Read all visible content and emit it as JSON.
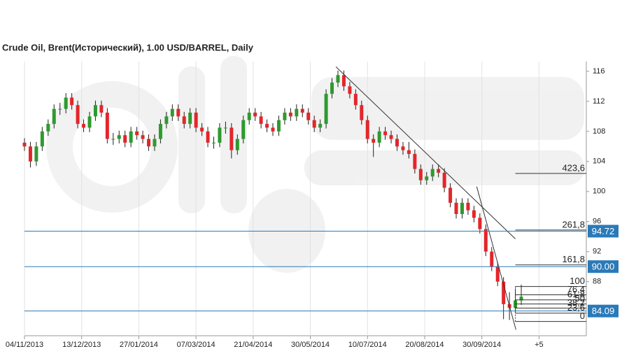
{
  "chart_data": {
    "type": "candlestick",
    "title": "Crude Oil, Brent(Исторический), 1.00 USD/BARREL, Daily",
    "up_color": "#2e9a2e",
    "down_color": "#e3262b",
    "xlim": [
      0,
      285
    ],
    "xticks": [
      {
        "value": 0,
        "label": "04/11/2013"
      },
      {
        "value": 29,
        "label": "13/12/2013"
      },
      {
        "value": 58,
        "label": "27/01/2014"
      },
      {
        "value": 87,
        "label": "07/03/2014"
      },
      {
        "value": 116,
        "label": "21/04/2014"
      },
      {
        "value": 145,
        "label": "30/05/2014"
      },
      {
        "value": 174,
        "label": "10/07/2014"
      },
      {
        "value": 203,
        "label": "20/08/2014"
      },
      {
        "value": 232,
        "label": "30/09/2014"
      },
      {
        "value": 261,
        "label": "+5"
      }
    ],
    "ylim": [
      80.8,
      117.3
    ],
    "yticks": [
      88,
      92,
      96,
      100,
      104,
      108,
      112,
      116
    ],
    "x": [
      0,
      3,
      6,
      9,
      12,
      15,
      18,
      21,
      24,
      27,
      30,
      33,
      36,
      39,
      42,
      45,
      48,
      51,
      54,
      57,
      60,
      63,
      66,
      69,
      72,
      75,
      78,
      81,
      84,
      87,
      90,
      93,
      96,
      99,
      102,
      105,
      108,
      111,
      114,
      117,
      120,
      123,
      126,
      129,
      132,
      135,
      138,
      141,
      144,
      147,
      150,
      153,
      156,
      159,
      162,
      165,
      168,
      171,
      174,
      177,
      180,
      183,
      186,
      189,
      192,
      195,
      198,
      201,
      204,
      207,
      210,
      213,
      216,
      219,
      222,
      225,
      228,
      231,
      234,
      237,
      240,
      243,
      246,
      249,
      252
    ],
    "open": [
      106.5,
      106,
      104,
      106,
      108,
      109,
      111,
      111,
      112.5,
      111.5,
      109,
      108.5,
      110,
      111.5,
      110.5,
      107,
      107,
      107.5,
      106.5,
      108,
      107.5,
      107,
      106,
      107,
      109,
      110,
      111,
      110,
      109,
      110.5,
      108.5,
      108,
      106.5,
      106.5,
      108.5,
      108.5,
      105.5,
      107,
      109.5,
      110.5,
      110,
      109,
      108.5,
      108,
      109.5,
      110.5,
      110,
      111,
      110.5,
      109.5,
      108.5,
      109,
      113,
      114.5,
      115.5,
      114,
      113,
      111.5,
      109.5,
      107,
      106.5,
      108,
      107.5,
      107,
      106,
      105.5,
      105,
      103,
      101.5,
      102,
      103,
      102.5,
      100.5,
      98.5,
      97,
      98.5,
      97.5,
      96.5,
      95,
      92,
      90,
      88,
      85,
      84.5,
      85.5
    ],
    "high": [
      107.1,
      106.6,
      106.6,
      108.6,
      109.6,
      111.6,
      111.8,
      113.1,
      113.1,
      112.1,
      109.6,
      110.6,
      112.1,
      112.1,
      111.1,
      107.8,
      108.1,
      108.1,
      108.6,
      108.6,
      108.1,
      107.6,
      107.6,
      109.6,
      110.6,
      111.6,
      111.6,
      110.6,
      111.1,
      111.1,
      109.1,
      108.6,
      107.3,
      109.1,
      109.3,
      109.1,
      107.6,
      110.1,
      111.1,
      111.1,
      110.6,
      109.6,
      109.1,
      110.1,
      111.1,
      111.1,
      111.6,
      111.6,
      111.1,
      110.1,
      109.6,
      113.6,
      115.1,
      116.1,
      116.1,
      114.6,
      113.6,
      112.1,
      110.1,
      107.6,
      108.6,
      108.6,
      108.1,
      107.6,
      106.6,
      106.6,
      105.6,
      103.6,
      102.6,
      103.6,
      103.6,
      103.1,
      101.1,
      99.1,
      99.1,
      99.1,
      98.1,
      97.1,
      95.6,
      92.6,
      90.6,
      88.6,
      86.6,
      87.1,
      87.6
    ],
    "low": [
      105.4,
      103.2,
      103.4,
      105.4,
      107.4,
      108.4,
      110.2,
      110.4,
      110.9,
      108.4,
      107.9,
      107.9,
      109.4,
      109.9,
      106.4,
      106.2,
      106.4,
      105.9,
      105.9,
      106.9,
      106.4,
      105.4,
      105.4,
      106.4,
      108.4,
      109.4,
      109.4,
      108.4,
      108.4,
      107.9,
      107.4,
      105.9,
      105.7,
      105.9,
      107.7,
      104.4,
      104.9,
      106.4,
      108.9,
      109.4,
      108.4,
      107.9,
      107.4,
      107.4,
      108.9,
      109.4,
      109.4,
      109.9,
      108.9,
      107.9,
      107.9,
      108.4,
      112.4,
      113.9,
      113.4,
      112.4,
      110.9,
      108.9,
      106.4,
      104.6,
      105.9,
      106.9,
      106.4,
      105.4,
      104.9,
      104.4,
      102.4,
      100.9,
      100.9,
      101.4,
      101.9,
      99.9,
      97.9,
      96.4,
      96.4,
      96.9,
      95.9,
      94.4,
      91.4,
      89.4,
      87.4,
      83.0,
      82.9,
      83.9,
      84.9
    ],
    "close": [
      106,
      104,
      106,
      108,
      109,
      111,
      111,
      112.5,
      111.5,
      109,
      108.5,
      110,
      111.5,
      110.5,
      107,
      107,
      107.5,
      106.5,
      108,
      107.5,
      107,
      106,
      107,
      109,
      110,
      111,
      110,
      109,
      110.5,
      108.5,
      108,
      106.5,
      106.5,
      108.5,
      108.5,
      105.5,
      107,
      109.5,
      110.5,
      110,
      109,
      108.5,
      108,
      109.5,
      110.5,
      110,
      111,
      110.5,
      109.5,
      108.5,
      109,
      113,
      114.5,
      115.5,
      114,
      113,
      111.5,
      109.5,
      107,
      106.5,
      108,
      107.5,
      107,
      106,
      105.5,
      105,
      103,
      101.5,
      102,
      103,
      102.5,
      100.5,
      98.5,
      97,
      98.5,
      97.5,
      96.5,
      95,
      92,
      90,
      88,
      85,
      84.5,
      85.5,
      86
    ],
    "price_lines": [
      94.72,
      {
        "value": 90,
        "label": "90.00"
      },
      84.09
    ],
    "price_line_color": "#2a7ab8",
    "trendlines": [
      {
        "x": [
          158,
          249
        ],
        "y": [
          116.6,
          93.7
        ]
      },
      {
        "x": [
          229.4,
          249.3
        ],
        "y": [
          100.65,
          81.6
        ]
      }
    ],
    "fibonacci": {
      "low": 82.7,
      "high": 87.35,
      "x": [
        249,
        285
      ],
      "levels": [
        {
          "value": 423.6,
          "label": "423,6"
        },
        {
          "value": 261.8,
          "label": "261,8"
        },
        {
          "value": 161.8,
          "label": "161,8"
        },
        100,
        {
          "value": 76.4,
          "label": "76,4"
        },
        {
          "value": 61.8,
          "label": "61,8"
        },
        50,
        {
          "value": 38.2,
          "label": "38,2"
        },
        {
          "value": 23.6,
          "label": "23,6"
        },
        0
      ]
    }
  }
}
